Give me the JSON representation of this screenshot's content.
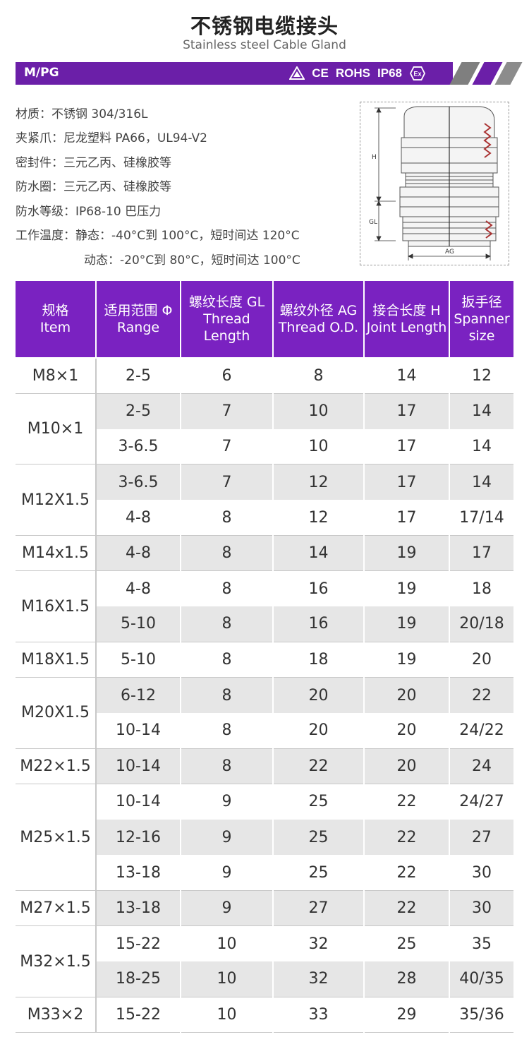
{
  "header": {
    "title": "不锈钢电缆接头",
    "subtitle": "Stainless steel Cable Gland"
  },
  "banner": {
    "label": "M/PG",
    "certs": [
      "CE",
      "ROHS",
      "IP68"
    ],
    "cert_icons": [
      "tuv-icon",
      "ex-icon"
    ],
    "accent_color": "#6b1fa8",
    "stripe_color": "#888888"
  },
  "specs": [
    {
      "label": "材质：",
      "value": "不锈钢 304/316L"
    },
    {
      "label": "夹紧爪：",
      "value": "尼龙塑料 PA66，UL94-V2"
    },
    {
      "label": "密封件：",
      "value": "三元乙丙、硅橡胶等"
    },
    {
      "label": "防水圈：",
      "value": "三元乙丙、硅橡胶等"
    },
    {
      "label": "防水等级：",
      "value": "IP68-10 巴压力"
    },
    {
      "label": "工作温度：",
      "value": "静态：-40°C到 100°C，短时间达 120°C"
    },
    {
      "label": "",
      "value": "动态：-20°C到 80°C，短时间达 100°C"
    }
  ],
  "diagram": {
    "labels": {
      "h": "H",
      "gl": "GL",
      "ag": "AG"
    }
  },
  "table": {
    "headers": [
      {
        "cn": "规格",
        "en": "Item"
      },
      {
        "cn": "适用范围 Φ",
        "en": "Range"
      },
      {
        "cn": "螺纹长度 GL",
        "en": "Thread Length"
      },
      {
        "cn": "螺纹外径 AG",
        "en": "Thread O.D."
      },
      {
        "cn": "接合长度 H",
        "en": "Joint Length"
      },
      {
        "cn": "扳手径",
        "en": "Spanner size"
      }
    ],
    "groups": [
      {
        "item": "M8×1",
        "rows": [
          [
            "2-5",
            "6",
            "8",
            "14",
            "12"
          ]
        ]
      },
      {
        "item": "M10×1",
        "rows": [
          [
            "2-5",
            "7",
            "10",
            "17",
            "14"
          ],
          [
            "3-6.5",
            "7",
            "10",
            "17",
            "14"
          ]
        ]
      },
      {
        "item": "M12X1.5",
        "rows": [
          [
            "3-6.5",
            "7",
            "12",
            "17",
            "14"
          ],
          [
            "4-8",
            "8",
            "12",
            "17",
            "17/14"
          ]
        ]
      },
      {
        "item": "M14x1.5",
        "rows": [
          [
            "4-8",
            "8",
            "14",
            "19",
            "17"
          ]
        ]
      },
      {
        "item": "M16X1.5",
        "rows": [
          [
            "4-8",
            "8",
            "16",
            "19",
            "18"
          ],
          [
            "5-10",
            "8",
            "16",
            "19",
            "20/18"
          ]
        ]
      },
      {
        "item": "M18X1.5",
        "rows": [
          [
            "5-10",
            "8",
            "18",
            "19",
            "20"
          ]
        ]
      },
      {
        "item": "M20X1.5",
        "rows": [
          [
            "6-12",
            "8",
            "20",
            "20",
            "22"
          ],
          [
            "10-14",
            "8",
            "20",
            "20",
            "24/22"
          ]
        ]
      },
      {
        "item": "M22×1.5",
        "rows": [
          [
            "10-14",
            "8",
            "22",
            "20",
            "24"
          ]
        ]
      },
      {
        "item": "M25×1.5",
        "rows": [
          [
            "10-14",
            "9",
            "25",
            "22",
            "24/27"
          ],
          [
            "12-16",
            "9",
            "25",
            "22",
            "27"
          ],
          [
            "13-18",
            "9",
            "25",
            "22",
            "30"
          ]
        ]
      },
      {
        "item": "M27×1.5",
        "rows": [
          [
            "13-18",
            "9",
            "27",
            "22",
            "30"
          ]
        ]
      },
      {
        "item": "M32×1.5",
        "rows": [
          [
            "15-22",
            "10",
            "32",
            "25",
            "35"
          ],
          [
            "18-25",
            "10",
            "32",
            "28",
            "40/35"
          ]
        ]
      },
      {
        "item": "M33×2",
        "rows": [
          [
            "15-22",
            "10",
            "33",
            "29",
            "35/36"
          ]
        ]
      }
    ]
  }
}
